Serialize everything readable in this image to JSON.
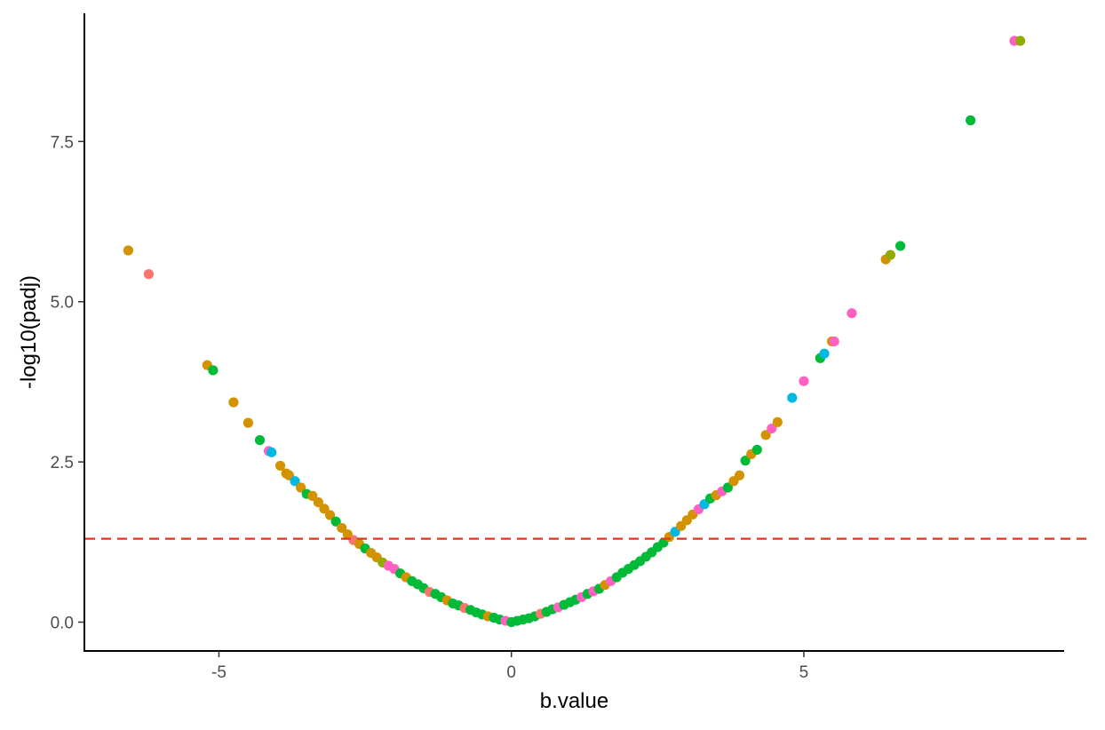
{
  "chart_data": {
    "type": "scatter",
    "title": "",
    "xlabel": "b.value",
    "ylabel": "-log10(padj)",
    "xlim": [
      -7.3,
      9.45
    ],
    "ylim": [
      -0.45,
      9.5
    ],
    "x_ticks": [
      -5,
      0,
      5
    ],
    "x_tick_labels": [
      "-5",
      "0",
      "5"
    ],
    "y_ticks": [
      0,
      2.5,
      5,
      7.5
    ],
    "y_tick_labels": [
      "0.0",
      "2.5",
      "5.0",
      "7.5"
    ],
    "grid": false,
    "legend": "none",
    "reference_line": {
      "axis": "y",
      "value": 1.301,
      "style": "dashed",
      "color": "#e8321e"
    },
    "colors": {
      "salmon": "#f8766d",
      "gold": "#d39200",
      "olive": "#93aa00",
      "green": "#00ba38",
      "cyan": "#00b9e3",
      "pink": "#ff61c3"
    },
    "points": [
      {
        "x": -6.55,
        "y": 5.8,
        "c": "gold"
      },
      {
        "x": -6.2,
        "y": 5.43,
        "c": "salmon"
      },
      {
        "x": -5.2,
        "y": 4.01,
        "c": "gold"
      },
      {
        "x": -5.1,
        "y": 3.93,
        "c": "green"
      },
      {
        "x": -4.75,
        "y": 3.43,
        "c": "gold"
      },
      {
        "x": -4.5,
        "y": 3.11,
        "c": "gold"
      },
      {
        "x": -4.3,
        "y": 2.84,
        "c": "green"
      },
      {
        "x": -4.15,
        "y": 2.67,
        "c": "pink"
      },
      {
        "x": -4.1,
        "y": 2.65,
        "c": "cyan"
      },
      {
        "x": -3.95,
        "y": 2.44,
        "c": "gold"
      },
      {
        "x": -3.85,
        "y": 2.32,
        "c": "gold"
      },
      {
        "x": -3.8,
        "y": 2.29,
        "c": "gold"
      },
      {
        "x": -3.7,
        "y": 2.2,
        "c": "cyan"
      },
      {
        "x": -3.6,
        "y": 2.1,
        "c": "gold"
      },
      {
        "x": -3.5,
        "y": 2.0,
        "c": "green"
      },
      {
        "x": -3.4,
        "y": 1.97,
        "c": "gold"
      },
      {
        "x": -3.3,
        "y": 1.87,
        "c": "gold"
      },
      {
        "x": -3.2,
        "y": 1.77,
        "c": "gold"
      },
      {
        "x": -3.1,
        "y": 1.67,
        "c": "gold"
      },
      {
        "x": -3.0,
        "y": 1.57,
        "c": "green"
      },
      {
        "x": -2.9,
        "y": 1.47,
        "c": "gold"
      },
      {
        "x": -2.8,
        "y": 1.37,
        "c": "gold"
      },
      {
        "x": -2.7,
        "y": 1.28,
        "c": "salmon"
      },
      {
        "x": -2.6,
        "y": 1.22,
        "c": "gold"
      },
      {
        "x": -2.5,
        "y": 1.15,
        "c": "green"
      },
      {
        "x": -2.4,
        "y": 1.08,
        "c": "gold"
      },
      {
        "x": -2.3,
        "y": 1.01,
        "c": "gold"
      },
      {
        "x": -2.2,
        "y": 0.93,
        "c": "olive"
      },
      {
        "x": -2.1,
        "y": 0.88,
        "c": "pink"
      },
      {
        "x": -2.0,
        "y": 0.83,
        "c": "pink"
      },
      {
        "x": -1.9,
        "y": 0.76,
        "c": "green"
      },
      {
        "x": -1.8,
        "y": 0.7,
        "c": "gold"
      },
      {
        "x": -1.7,
        "y": 0.64,
        "c": "green"
      },
      {
        "x": -1.6,
        "y": 0.59,
        "c": "green"
      },
      {
        "x": -1.5,
        "y": 0.53,
        "c": "green"
      },
      {
        "x": -1.4,
        "y": 0.47,
        "c": "salmon"
      },
      {
        "x": -1.3,
        "y": 0.44,
        "c": "green"
      },
      {
        "x": -1.2,
        "y": 0.39,
        "c": "green"
      },
      {
        "x": -1.1,
        "y": 0.34,
        "c": "gold"
      },
      {
        "x": -1.0,
        "y": 0.29,
        "c": "green"
      },
      {
        "x": -0.9,
        "y": 0.26,
        "c": "green"
      },
      {
        "x": -0.8,
        "y": 0.22,
        "c": "salmon"
      },
      {
        "x": -0.7,
        "y": 0.19,
        "c": "green"
      },
      {
        "x": -0.6,
        "y": 0.15,
        "c": "green"
      },
      {
        "x": -0.5,
        "y": 0.12,
        "c": "green"
      },
      {
        "x": -0.4,
        "y": 0.09,
        "c": "gold"
      },
      {
        "x": -0.3,
        "y": 0.07,
        "c": "green"
      },
      {
        "x": -0.2,
        "y": 0.04,
        "c": "green"
      },
      {
        "x": -0.1,
        "y": 0.02,
        "c": "pink"
      },
      {
        "x": 0.0,
        "y": 0.0,
        "c": "green"
      },
      {
        "x": 0.1,
        "y": 0.02,
        "c": "green"
      },
      {
        "x": 0.2,
        "y": 0.04,
        "c": "green"
      },
      {
        "x": 0.3,
        "y": 0.06,
        "c": "green"
      },
      {
        "x": 0.4,
        "y": 0.09,
        "c": "green"
      },
      {
        "x": 0.5,
        "y": 0.13,
        "c": "salmon"
      },
      {
        "x": 0.6,
        "y": 0.16,
        "c": "green"
      },
      {
        "x": 0.7,
        "y": 0.2,
        "c": "green"
      },
      {
        "x": 0.8,
        "y": 0.23,
        "c": "pink"
      },
      {
        "x": 0.9,
        "y": 0.27,
        "c": "green"
      },
      {
        "x": 1.0,
        "y": 0.31,
        "c": "green"
      },
      {
        "x": 1.1,
        "y": 0.35,
        "c": "green"
      },
      {
        "x": 1.2,
        "y": 0.39,
        "c": "pink"
      },
      {
        "x": 1.3,
        "y": 0.44,
        "c": "green"
      },
      {
        "x": 1.4,
        "y": 0.48,
        "c": "pink"
      },
      {
        "x": 1.5,
        "y": 0.52,
        "c": "green"
      },
      {
        "x": 1.6,
        "y": 0.58,
        "c": "gold"
      },
      {
        "x": 1.7,
        "y": 0.64,
        "c": "pink"
      },
      {
        "x": 1.8,
        "y": 0.7,
        "c": "green"
      },
      {
        "x": 1.9,
        "y": 0.77,
        "c": "green"
      },
      {
        "x": 2.0,
        "y": 0.83,
        "c": "green"
      },
      {
        "x": 2.1,
        "y": 0.89,
        "c": "green"
      },
      {
        "x": 2.2,
        "y": 0.95,
        "c": "green"
      },
      {
        "x": 2.3,
        "y": 1.02,
        "c": "green"
      },
      {
        "x": 2.4,
        "y": 1.09,
        "c": "green"
      },
      {
        "x": 2.5,
        "y": 1.17,
        "c": "green"
      },
      {
        "x": 2.6,
        "y": 1.24,
        "c": "green"
      },
      {
        "x": 2.7,
        "y": 1.33,
        "c": "gold"
      },
      {
        "x": 2.8,
        "y": 1.41,
        "c": "cyan"
      },
      {
        "x": 2.9,
        "y": 1.5,
        "c": "gold"
      },
      {
        "x": 3.0,
        "y": 1.59,
        "c": "gold"
      },
      {
        "x": 3.1,
        "y": 1.68,
        "c": "gold"
      },
      {
        "x": 3.2,
        "y": 1.76,
        "c": "pink"
      },
      {
        "x": 3.3,
        "y": 1.84,
        "c": "cyan"
      },
      {
        "x": 3.4,
        "y": 1.93,
        "c": "green"
      },
      {
        "x": 3.5,
        "y": 1.98,
        "c": "gold"
      },
      {
        "x": 3.6,
        "y": 2.04,
        "c": "pink"
      },
      {
        "x": 3.7,
        "y": 2.1,
        "c": "green"
      },
      {
        "x": 3.8,
        "y": 2.2,
        "c": "gold"
      },
      {
        "x": 3.9,
        "y": 2.29,
        "c": "gold"
      },
      {
        "x": 4.0,
        "y": 2.52,
        "c": "green"
      },
      {
        "x": 4.1,
        "y": 2.62,
        "c": "gold"
      },
      {
        "x": 4.2,
        "y": 2.69,
        "c": "green"
      },
      {
        "x": 4.35,
        "y": 2.92,
        "c": "gold"
      },
      {
        "x": 4.45,
        "y": 3.02,
        "c": "pink"
      },
      {
        "x": 4.55,
        "y": 3.12,
        "c": "gold"
      },
      {
        "x": 4.8,
        "y": 3.5,
        "c": "cyan"
      },
      {
        "x": 5.0,
        "y": 3.76,
        "c": "pink"
      },
      {
        "x": 5.28,
        "y": 4.12,
        "c": "green"
      },
      {
        "x": 5.35,
        "y": 4.19,
        "c": "cyan"
      },
      {
        "x": 5.48,
        "y": 4.38,
        "c": "gold"
      },
      {
        "x": 5.52,
        "y": 4.38,
        "c": "pink"
      },
      {
        "x": 5.82,
        "y": 4.82,
        "c": "pink"
      },
      {
        "x": 6.4,
        "y": 5.66,
        "c": "gold"
      },
      {
        "x": 6.48,
        "y": 5.73,
        "c": "olive"
      },
      {
        "x": 6.65,
        "y": 5.87,
        "c": "green"
      },
      {
        "x": 7.85,
        "y": 7.83,
        "c": "green"
      },
      {
        "x": 8.6,
        "y": 9.07,
        "c": "pink"
      },
      {
        "x": 8.7,
        "y": 9.07,
        "c": "olive"
      }
    ]
  }
}
